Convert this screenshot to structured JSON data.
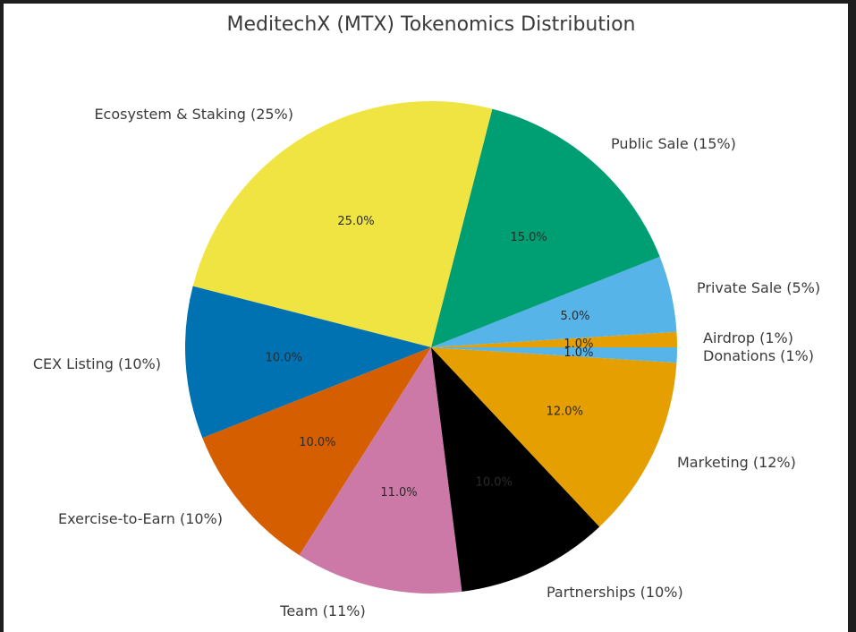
{
  "chart_data": {
    "type": "pie",
    "title": "MeditechX (MTX) Tokenomics Distribution",
    "start_angle_deg": 0,
    "direction": "counterclockwise",
    "slices": [
      {
        "label": "Airdrop (1%)",
        "value": 1,
        "pct_label": "1.0%",
        "color": "#E69F00"
      },
      {
        "label": "Private Sale (5%)",
        "value": 5,
        "pct_label": "5.0%",
        "color": "#56B4E9"
      },
      {
        "label": "Public Sale (15%)",
        "value": 15,
        "pct_label": "15.0%",
        "color": "#009E73"
      },
      {
        "label": "Ecosystem & Staking (25%)",
        "value": 25,
        "pct_label": "25.0%",
        "color": "#F0E442"
      },
      {
        "label": "CEX Listing (10%)",
        "value": 10,
        "pct_label": "10.0%",
        "color": "#0072B2"
      },
      {
        "label": "Exercise-to-Earn (10%)",
        "value": 10,
        "pct_label": "10.0%",
        "color": "#D55E00"
      },
      {
        "label": "Team (11%)",
        "value": 11,
        "pct_label": "11.0%",
        "color": "#CC79A7"
      },
      {
        "label": "Partnerships (10%)",
        "value": 10,
        "pct_label": "10.0%",
        "color": "#000000"
      },
      {
        "label": "Marketing (12%)",
        "value": 12,
        "pct_label": "12.0%",
        "color": "#E69F00"
      },
      {
        "label": "Donations (1%)",
        "value": 1,
        "pct_label": "1.0%",
        "color": "#56B4E9"
      }
    ],
    "categories": [
      "Airdrop",
      "Private Sale",
      "Public Sale",
      "Ecosystem & Staking",
      "CEX Listing",
      "Exercise-to-Earn",
      "Team",
      "Partnerships",
      "Marketing",
      "Donations"
    ],
    "values": [
      1,
      5,
      15,
      25,
      10,
      10,
      11,
      10,
      12,
      1
    ]
  }
}
